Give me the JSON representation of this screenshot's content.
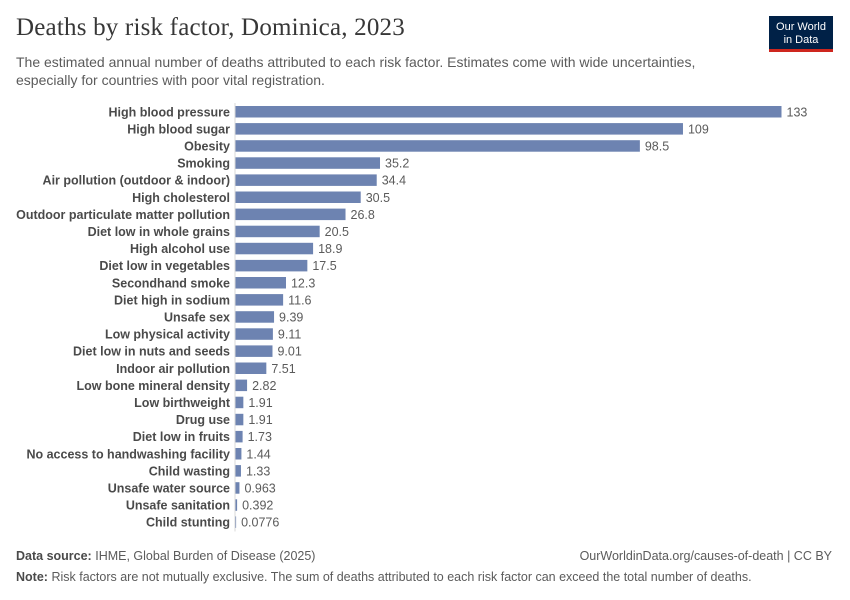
{
  "header": {
    "title": "Deaths by risk factor, Dominica, 2023",
    "subtitle": "The estimated annual number of deaths attributed to each risk factor. Estimates come with wide uncertainties, especially for countries with poor vital registration.",
    "logo_line1": "Our World",
    "logo_line2": "in Data"
  },
  "footer": {
    "source_label": "Data source:",
    "source_text": "IHME, Global Burden of Disease (2025)",
    "url_text": "OurWorldinData.org/causes-of-death | CC BY",
    "note_label": "Note:",
    "note_text": "Risk factors are not mutually exclusive. The sum of deaths attributed to each risk factor can exceed the total number of deaths."
  },
  "chart_data": {
    "type": "bar",
    "orientation": "horizontal",
    "bar_color": "#6d83b1",
    "categories": [
      "High blood pressure",
      "High blood sugar",
      "Obesity",
      "Smoking",
      "Air pollution (outdoor & indoor)",
      "High cholesterol",
      "Outdoor particulate matter pollution",
      "Diet low in whole grains",
      "High alcohol use",
      "Diet low in vegetables",
      "Secondhand smoke",
      "Diet high in sodium",
      "Unsafe sex",
      "Low physical activity",
      "Diet low in nuts and seeds",
      "Indoor air pollution",
      "Low bone mineral density",
      "Low birthweight",
      "Drug use",
      "Diet low in fruits",
      "No access to handwashing facility",
      "Child wasting",
      "Unsafe water source",
      "Unsafe sanitation",
      "Child stunting"
    ],
    "values": [
      133,
      109,
      98.5,
      35.2,
      34.4,
      30.5,
      26.8,
      20.5,
      18.9,
      17.5,
      12.3,
      11.6,
      9.39,
      9.11,
      9.01,
      7.51,
      2.82,
      1.91,
      1.91,
      1.73,
      1.44,
      1.33,
      0.963,
      0.392,
      0.0776
    ],
    "value_labels": [
      "133",
      "109",
      "98.5",
      "35.2",
      "34.4",
      "30.5",
      "26.8",
      "20.5",
      "18.9",
      "17.5",
      "12.3",
      "11.6",
      "9.39",
      "9.11",
      "9.01",
      "7.51",
      "2.82",
      "1.91",
      "1.91",
      "1.73",
      "1.44",
      "1.33",
      "0.963",
      "0.392",
      "0.0776"
    ],
    "xlim": [
      0,
      133
    ]
  }
}
